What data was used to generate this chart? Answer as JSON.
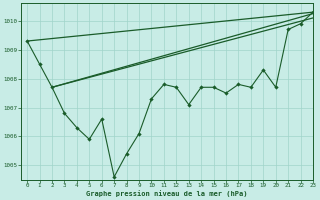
{
  "xlabel_label": "Graphe pression niveau de la mer (hPa)",
  "bg_color": "#c8ece6",
  "grid_color": "#a0d4ca",
  "line_color": "#1a5c2a",
  "ylim": [
    1004.5,
    1010.6
  ],
  "xlim": [
    -0.5,
    23
  ],
  "yticks": [
    1005,
    1006,
    1007,
    1008,
    1009,
    1010
  ],
  "xticks": [
    0,
    1,
    2,
    3,
    4,
    5,
    6,
    7,
    8,
    9,
    10,
    11,
    12,
    13,
    14,
    15,
    16,
    17,
    18,
    19,
    20,
    21,
    22,
    23
  ],
  "main_line_x": [
    0,
    1,
    2,
    3,
    4,
    5,
    6,
    7,
    8,
    9,
    10,
    11,
    12,
    13,
    14,
    15,
    16,
    17,
    18,
    19,
    20,
    21,
    22,
    23
  ],
  "main_line_y": [
    1009.3,
    1008.5,
    1007.7,
    1006.8,
    1006.3,
    1005.9,
    1006.6,
    1004.6,
    1005.4,
    1006.1,
    1007.3,
    1007.8,
    1007.7,
    1007.1,
    1007.7,
    1007.7,
    1007.5,
    1007.8,
    1007.7,
    1008.3,
    1007.7,
    1009.7,
    1009.9,
    1010.3
  ],
  "trend1_x": [
    0,
    23
  ],
  "trend1_y": [
    1009.3,
    1010.3
  ],
  "trend2_x": [
    2,
    23
  ],
  "trend2_y": [
    1007.7,
    1010.25
  ],
  "trend3_x": [
    2,
    23
  ],
  "trend3_y": [
    1007.7,
    1010.1
  ]
}
